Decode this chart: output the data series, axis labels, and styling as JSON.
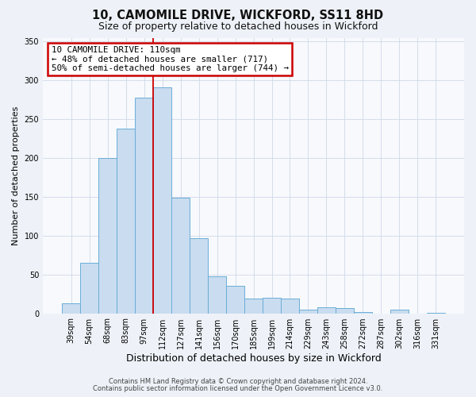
{
  "title": "10, CAMOMILE DRIVE, WICKFORD, SS11 8HD",
  "subtitle": "Size of property relative to detached houses in Wickford",
  "xlabel": "Distribution of detached houses by size in Wickford",
  "ylabel": "Number of detached properties",
  "bar_labels": [
    "39sqm",
    "54sqm",
    "68sqm",
    "83sqm",
    "97sqm",
    "112sqm",
    "127sqm",
    "141sqm",
    "156sqm",
    "170sqm",
    "185sqm",
    "199sqm",
    "214sqm",
    "229sqm",
    "243sqm",
    "258sqm",
    "272sqm",
    "287sqm",
    "302sqm",
    "316sqm",
    "331sqm"
  ],
  "bar_values": [
    13,
    65,
    200,
    238,
    278,
    291,
    149,
    97,
    48,
    35,
    19,
    20,
    19,
    5,
    8,
    7,
    2,
    0,
    5,
    0,
    1
  ],
  "bar_color": "#c9dcf0",
  "bar_edge_color": "#6baed6",
  "vline_index": 5,
  "vline_color": "#cc0000",
  "annotation_title": "10 CAMOMILE DRIVE: 110sqm",
  "annotation_line1": "← 48% of detached houses are smaller (717)",
  "annotation_line2": "50% of semi-detached houses are larger (744) →",
  "annotation_box_facecolor": "#ffffff",
  "annotation_box_edgecolor": "#cc0000",
  "ylim": [
    0,
    355
  ],
  "yticks": [
    0,
    50,
    100,
    150,
    200,
    250,
    300,
    350
  ],
  "footnote1": "Contains HM Land Registry data © Crown copyright and database right 2024.",
  "footnote2": "Contains public sector information licensed under the Open Government Licence v3.0.",
  "fig_facecolor": "#eef2f8",
  "ax_facecolor": "#f7f9fc",
  "grid_color": "#d0d8e8",
  "title_fontsize": 10.5,
  "subtitle_fontsize": 9,
  "ylabel_fontsize": 8,
  "xlabel_fontsize": 9,
  "tick_fontsize": 7,
  "footnote_fontsize": 6
}
